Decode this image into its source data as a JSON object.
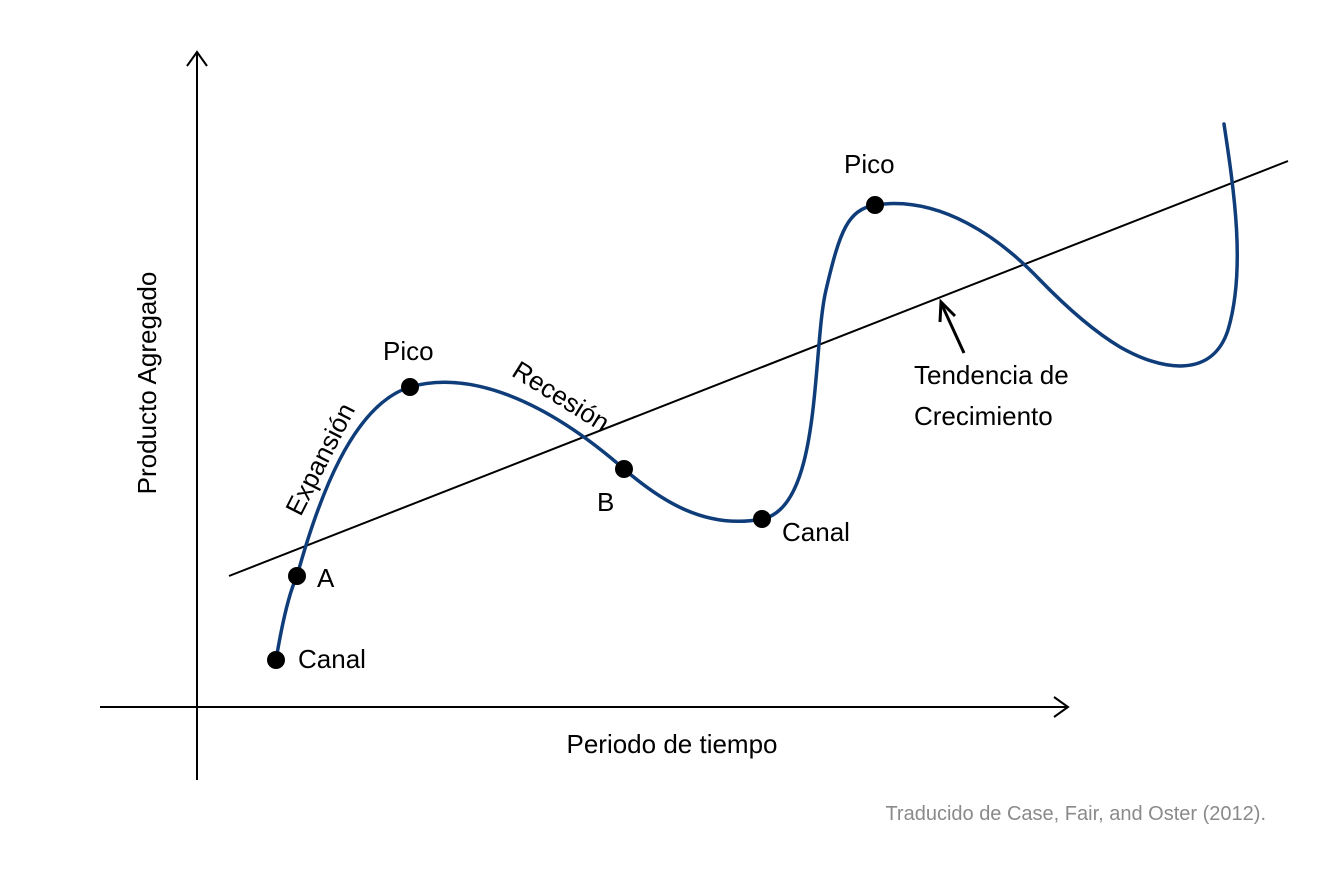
{
  "diagram": {
    "y_axis_label": "Producto Agregado",
    "x_axis_label": "Periodo de tiempo",
    "curve_labels": {
      "expansion": "Expansión",
      "recession": "Recesión"
    },
    "points": {
      "trough_1": "Canal",
      "point_a": "A",
      "peak_1": "Pico",
      "point_b": "B",
      "trough_2": "Canal",
      "peak_2": "Pico"
    },
    "trend_label": {
      "line1": "Tendencia de",
      "line2": "Crecimiento"
    },
    "source": "Traducido de Case, Fair, and Oster (2012).",
    "colors": {
      "cycle_curve": "#0f3d7a",
      "axes": "#000000",
      "trend_line": "#000000",
      "source_text": "#8a8a8a"
    }
  }
}
